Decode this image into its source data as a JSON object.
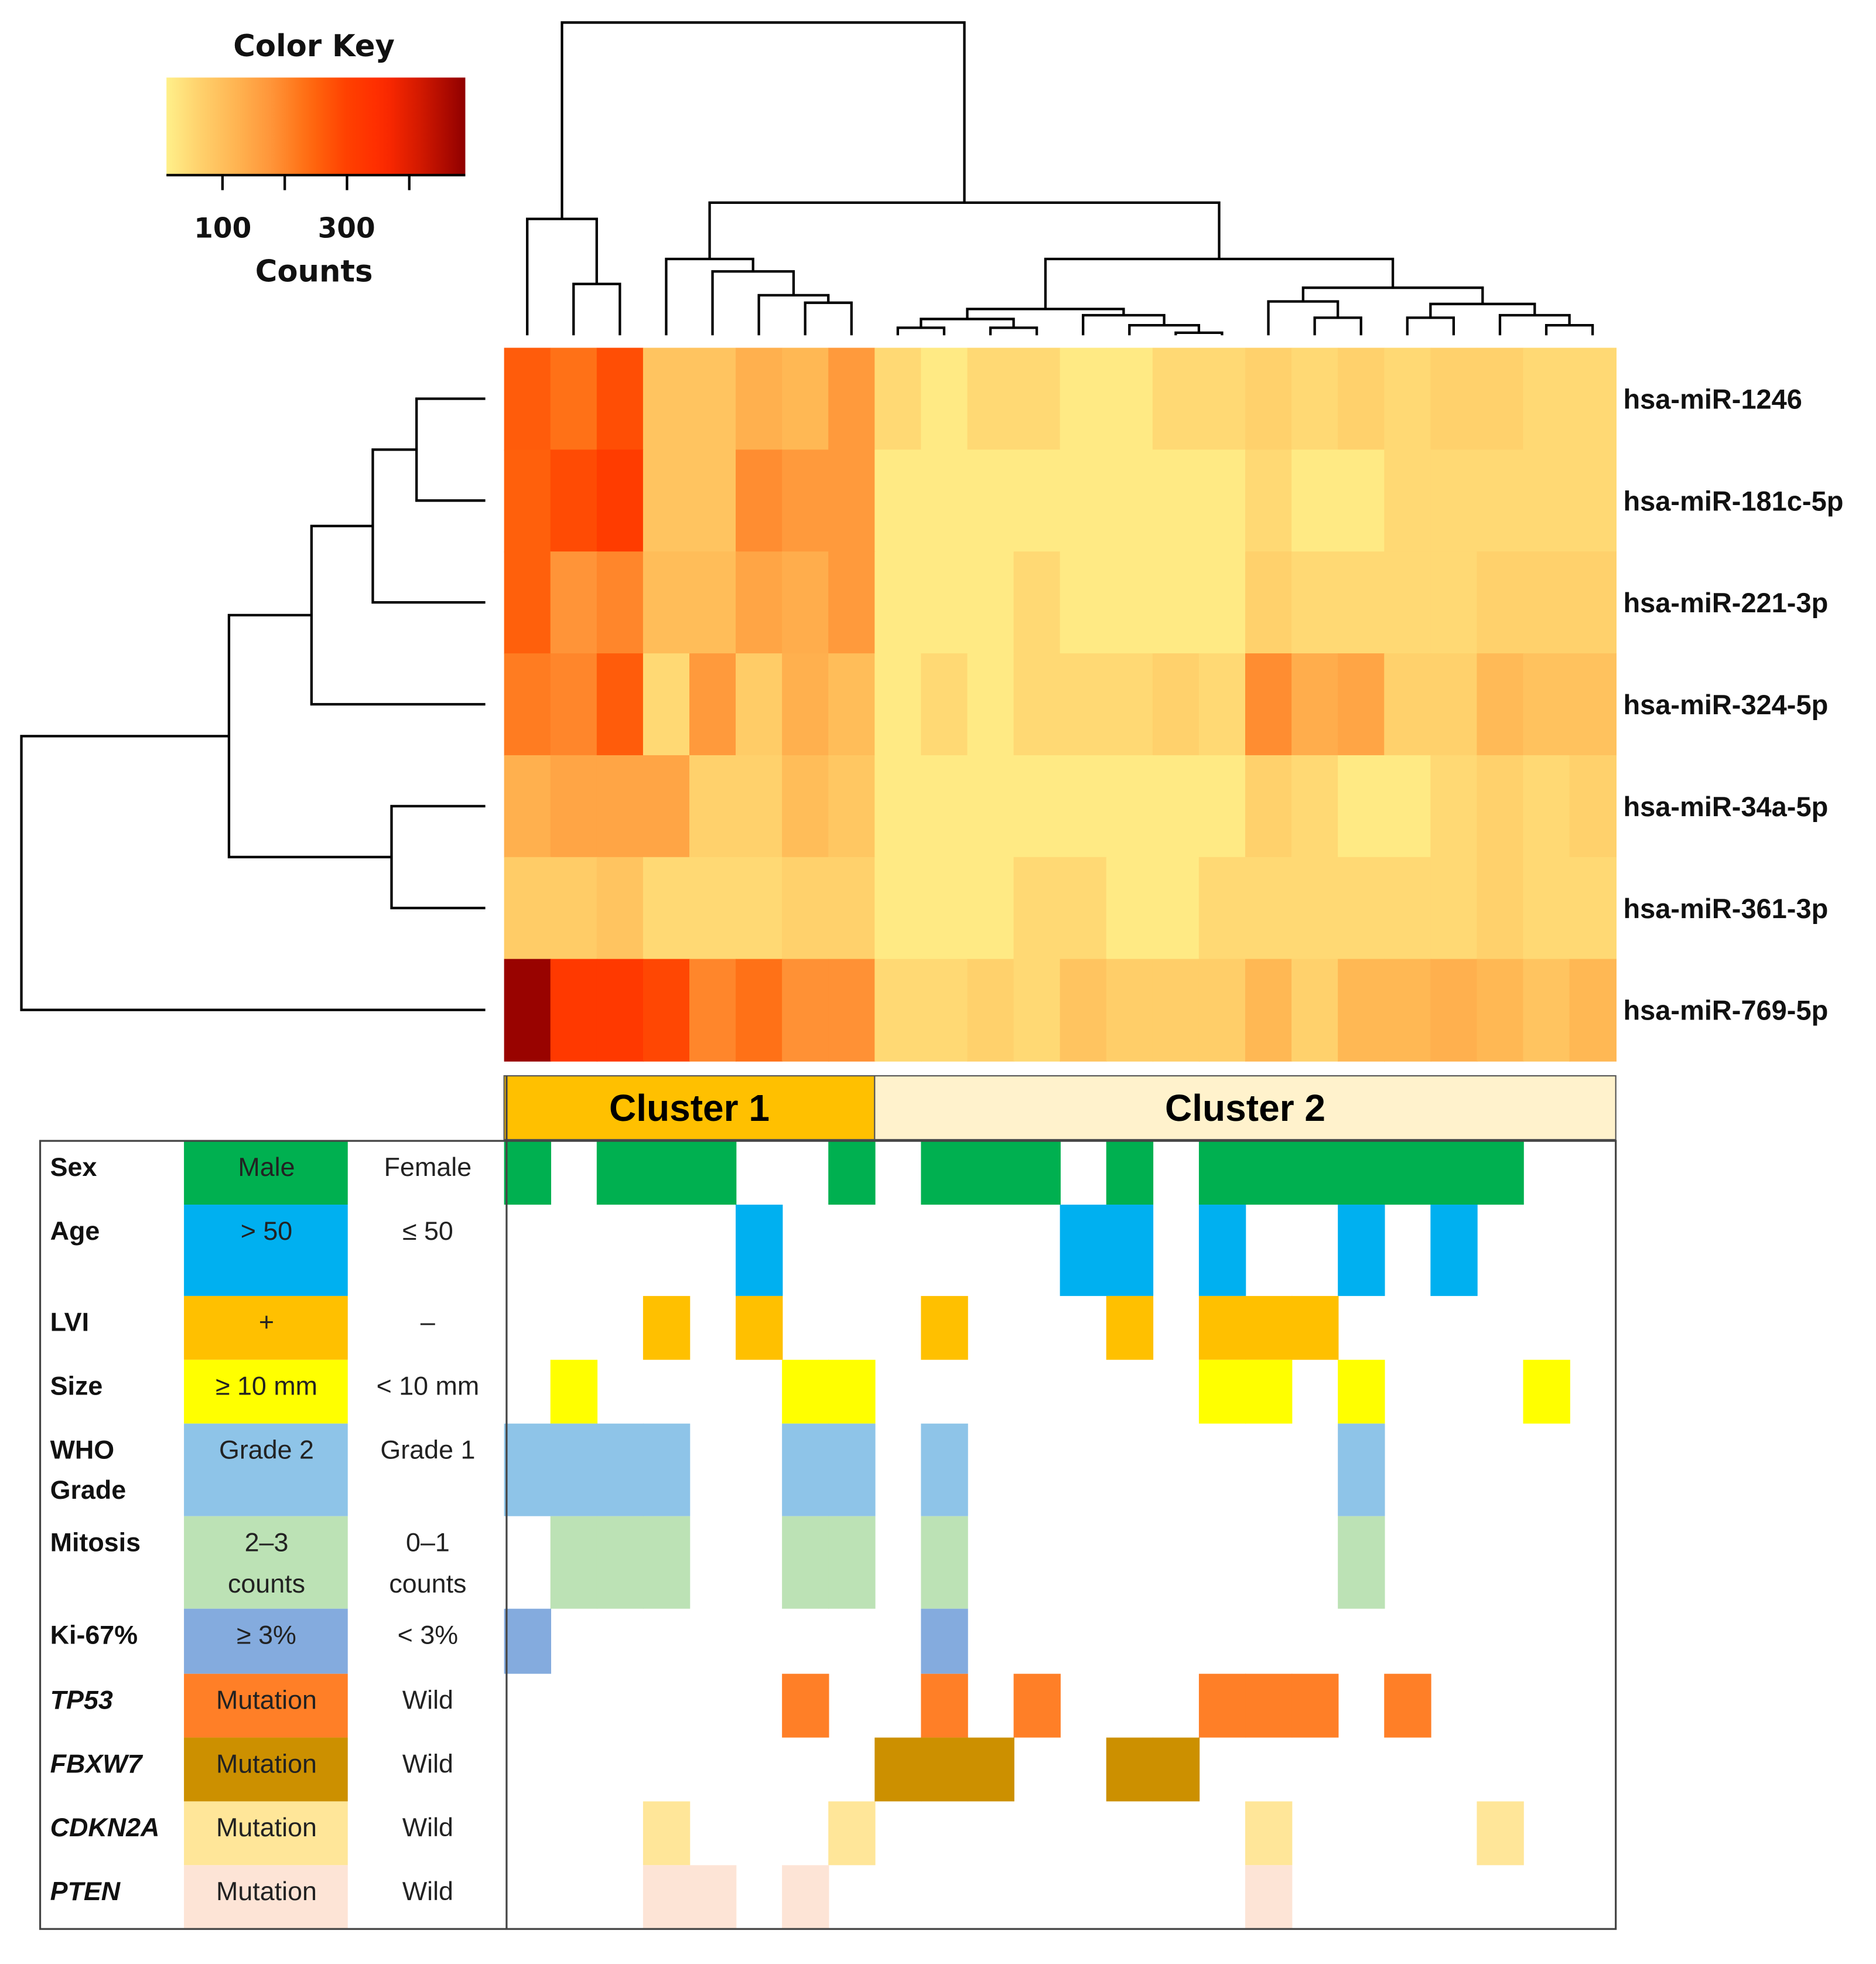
{
  "chart_data": {
    "type": "heatmap",
    "legend": {
      "title": "Color Key",
      "xlabel": "Counts",
      "tick_labels": [
        "100",
        "300"
      ],
      "ticks": [
        100,
        200,
        300,
        400
      ],
      "range": [
        10,
        490
      ]
    },
    "rows": [
      "hsa-miR-1246",
      "hsa-miR-181c-5p",
      "hsa-miR-221-3p",
      "hsa-miR-324-5p",
      "hsa-miR-34a-5p",
      "hsa-miR-361-3p",
      "hsa-miR-769-5p"
    ],
    "n_columns": 24,
    "values": [
      [
        260,
        230,
        280,
        90,
        90,
        130,
        115,
        170,
        50,
        20,
        50,
        50,
        20,
        20,
        50,
        50,
        65,
        50,
        65,
        50,
        65,
        65,
        50,
        50
      ],
      [
        255,
        285,
        310,
        90,
        90,
        190,
        170,
        170,
        20,
        20,
        20,
        20,
        20,
        20,
        20,
        20,
        50,
        20,
        20,
        50,
        50,
        50,
        50,
        50
      ],
      [
        255,
        180,
        200,
        105,
        105,
        150,
        135,
        170,
        20,
        20,
        20,
        50,
        20,
        20,
        20,
        20,
        65,
        50,
        50,
        50,
        50,
        65,
        65,
        65
      ],
      [
        215,
        200,
        260,
        50,
        170,
        75,
        130,
        105,
        20,
        50,
        20,
        50,
        50,
        50,
        65,
        50,
        190,
        135,
        150,
        65,
        65,
        110,
        95,
        95
      ],
      [
        130,
        150,
        150,
        150,
        65,
        65,
        105,
        85,
        20,
        20,
        20,
        20,
        20,
        20,
        20,
        20,
        65,
        50,
        20,
        20,
        50,
        65,
        50,
        65
      ],
      [
        75,
        75,
        90,
        50,
        50,
        50,
        65,
        65,
        20,
        20,
        20,
        50,
        50,
        20,
        20,
        50,
        50,
        50,
        50,
        50,
        50,
        65,
        50,
        50
      ],
      [
        480,
        320,
        320,
        290,
        200,
        230,
        185,
        185,
        50,
        50,
        65,
        50,
        90,
        70,
        70,
        70,
        115,
        65,
        115,
        115,
        130,
        115,
        90,
        115
      ]
    ],
    "clusters": [
      {
        "name": "Cluster 1",
        "columns": 8,
        "color": "#FFC000"
      },
      {
        "name": "Cluster 2",
        "columns": 16,
        "color": "#FFF2CC"
      }
    ],
    "annotations": [
      {
        "label": [
          "Sex"
        ],
        "positive": [
          "Male"
        ],
        "negative": [
          "Female"
        ],
        "color": "#00B050",
        "italic": false,
        "values": [
          1,
          0,
          1,
          1,
          1,
          0,
          0,
          1,
          0,
          1,
          1,
          1,
          0,
          1,
          0,
          1,
          1,
          1,
          1,
          1,
          1,
          1,
          0,
          0
        ]
      },
      {
        "label": [
          "Age"
        ],
        "positive": [
          "> 50"
        ],
        "negative": [
          "≤ 50"
        ],
        "color": "#00B0F0",
        "italic": false,
        "values": [
          0,
          0,
          0,
          0,
          0,
          1,
          0,
          0,
          0,
          0,
          0,
          0,
          1,
          1,
          0,
          1,
          0,
          0,
          1,
          0,
          1,
          0,
          0,
          0
        ]
      },
      {
        "label": [
          "LVI"
        ],
        "positive": [
          "+"
        ],
        "negative": [
          "–"
        ],
        "color": "#FFC000",
        "italic": false,
        "values": [
          0,
          0,
          0,
          1,
          0,
          1,
          0,
          0,
          0,
          1,
          0,
          0,
          0,
          1,
          0,
          1,
          1,
          1,
          0,
          0,
          0,
          0,
          0,
          0
        ]
      },
      {
        "label": [
          "Size"
        ],
        "positive": [
          "≥ 10 mm"
        ],
        "negative": [
          "< 10 mm"
        ],
        "color": "#FFFF00",
        "italic": false,
        "values": [
          0,
          1,
          0,
          0,
          0,
          0,
          1,
          1,
          0,
          0,
          0,
          0,
          0,
          0,
          0,
          1,
          1,
          0,
          1,
          0,
          0,
          0,
          1,
          0
        ]
      },
      {
        "label": [
          "WHO",
          "Grade"
        ],
        "positive": [
          "Grade 2"
        ],
        "negative": [
          "Grade 1"
        ],
        "color": "#8EC4E8",
        "italic": false,
        "values": [
          1,
          1,
          1,
          1,
          0,
          0,
          1,
          1,
          0,
          1,
          0,
          0,
          0,
          0,
          0,
          0,
          0,
          0,
          1,
          0,
          0,
          0,
          0,
          0
        ]
      },
      {
        "label": [
          "Mitosis"
        ],
        "positive": [
          "2–3",
          "counts"
        ],
        "negative": [
          "0–1",
          "counts"
        ],
        "color": "#BCE2B5",
        "italic": false,
        "values": [
          0,
          1,
          1,
          1,
          0,
          0,
          1,
          1,
          0,
          1,
          0,
          0,
          0,
          0,
          0,
          0,
          0,
          0,
          1,
          0,
          0,
          0,
          0,
          0
        ]
      },
      {
        "label": [
          "Ki-67%"
        ],
        "positive": [
          "≥ 3%"
        ],
        "negative": [
          "< 3%"
        ],
        "color": "#84ABDE",
        "italic": false,
        "values": [
          1,
          0,
          0,
          0,
          0,
          0,
          0,
          0,
          0,
          1,
          0,
          0,
          0,
          0,
          0,
          0,
          0,
          0,
          0,
          0,
          0,
          0,
          0,
          0
        ]
      },
      {
        "label": [
          "TP53"
        ],
        "positive": [
          "Mutation"
        ],
        "negative": [
          "Wild"
        ],
        "color": "#FF7F27",
        "italic": true,
        "values": [
          0,
          0,
          0,
          0,
          0,
          0,
          1,
          0,
          0,
          1,
          0,
          1,
          0,
          0,
          0,
          1,
          1,
          1,
          0,
          1,
          0,
          0,
          0,
          0
        ]
      },
      {
        "label": [
          "FBXW7"
        ],
        "positive": [
          "Mutation"
        ],
        "negative": [
          "Wild"
        ],
        "color": "#CC9000",
        "italic": true,
        "values": [
          0,
          0,
          0,
          0,
          0,
          0,
          0,
          0,
          1,
          1,
          1,
          0,
          0,
          1,
          1,
          0,
          0,
          0,
          0,
          0,
          0,
          0,
          0,
          0
        ]
      },
      {
        "label": [
          "CDKN2A"
        ],
        "positive": [
          "Mutation"
        ],
        "negative": [
          "Wild"
        ],
        "color": "#FFE699",
        "italic": true,
        "values": [
          0,
          0,
          0,
          1,
          0,
          0,
          0,
          1,
          0,
          0,
          0,
          0,
          0,
          0,
          0,
          0,
          1,
          0,
          0,
          0,
          0,
          1,
          0,
          0
        ]
      },
      {
        "label": [
          "PTEN"
        ],
        "positive": [
          "Mutation"
        ],
        "negative": [
          "Wild"
        ],
        "color": "#FDE4D6",
        "italic": true,
        "values": [
          0,
          0,
          0,
          1,
          1,
          0,
          1,
          0,
          0,
          0,
          0,
          0,
          0,
          0,
          0,
          0,
          1,
          0,
          0,
          0,
          0,
          0,
          0,
          0
        ]
      }
    ]
  }
}
